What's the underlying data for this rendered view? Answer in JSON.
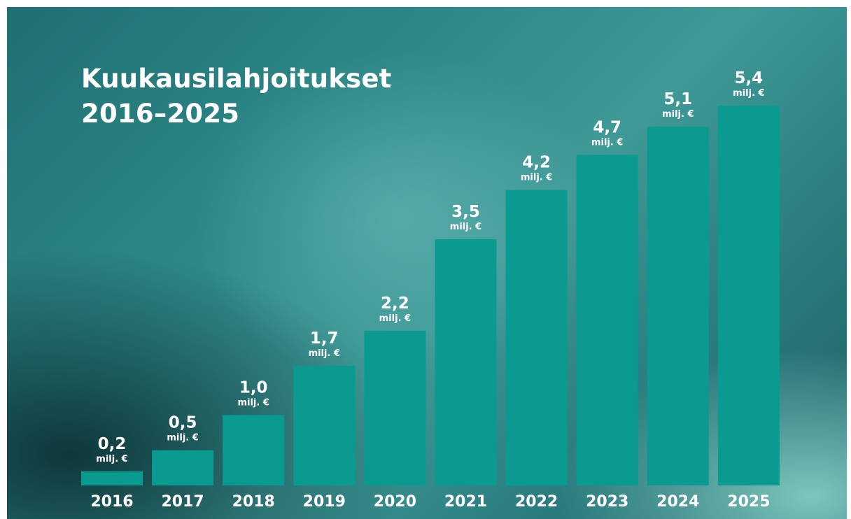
{
  "chart_data": {
    "type": "bar",
    "title": [
      "Kuukausilahjoitukset",
      "2016–2025"
    ],
    "categories": [
      "2016",
      "2017",
      "2018",
      "2019",
      "2020",
      "2021",
      "2022",
      "2023",
      "2024",
      "2025"
    ],
    "values": [
      0.2,
      0.5,
      1.0,
      1.7,
      2.2,
      3.5,
      4.2,
      4.7,
      5.1,
      5.4
    ],
    "data_labels": [
      "0,2",
      "0,5",
      "1,0",
      "1,7",
      "2,2",
      "3,5",
      "4,2",
      "4,7",
      "5,1",
      "5,4"
    ],
    "unit_label": "milj. €",
    "ylim": [
      0,
      5.4
    ],
    "grid": false,
    "legend": "none",
    "bar_color": "#0b9a8f",
    "text_color": "#ffffff"
  }
}
